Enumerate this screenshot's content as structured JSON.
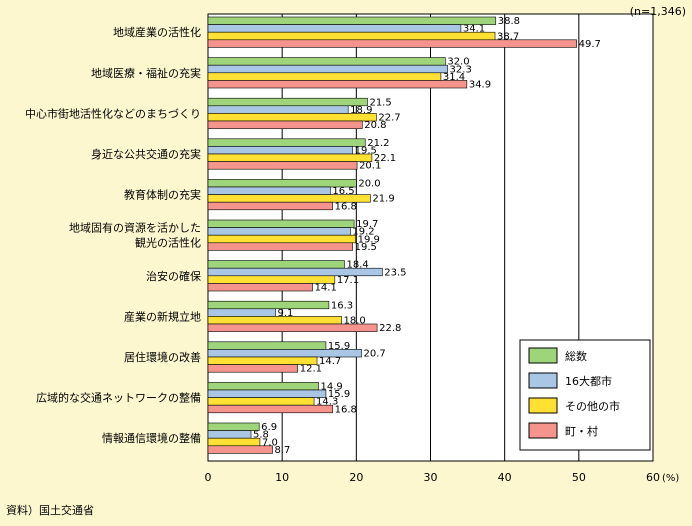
{
  "chart_data": {
    "type": "bar",
    "orientation": "horizontal",
    "sample_note": "(n=1,346)",
    "source": "資料）国土交通省",
    "x_unit": "(%)",
    "xlim": [
      0,
      60
    ],
    "x_ticks": [
      "0",
      "10",
      "20",
      "30",
      "40",
      "50",
      "60"
    ],
    "grid": "vertical",
    "legend_position": "bottom-right",
    "categories": [
      [
        "地域産業の活性化"
      ],
      [
        "地域医療・福祉の充実"
      ],
      [
        "中心市街地活性化などのまちづくり"
      ],
      [
        "身近な公共交通の充実"
      ],
      [
        "教育体制の充実"
      ],
      [
        "地域固有の資源を活かした",
        "観光の活性化"
      ],
      [
        "治安の確保"
      ],
      [
        "産業の新規立地"
      ],
      [
        "居住環境の改善"
      ],
      [
        "広域的な交通ネットワークの整備"
      ],
      [
        "情報通信環境の整備"
      ]
    ],
    "series": [
      {
        "name": "総数",
        "color": "#9ed47a",
        "values": [
          38.8,
          32.0,
          21.5,
          21.2,
          20.0,
          19.7,
          18.4,
          16.3,
          15.9,
          14.9,
          6.9
        ]
      },
      {
        "name": "16大都市",
        "color": "#a9c6e4",
        "values": [
          34.1,
          32.3,
          18.9,
          19.5,
          16.5,
          19.2,
          23.5,
          9.1,
          20.7,
          15.9,
          5.8
        ]
      },
      {
        "name": "その他の市",
        "color": "#ffe033",
        "values": [
          38.7,
          31.4,
          22.7,
          22.1,
          21.9,
          19.9,
          17.1,
          18.0,
          14.7,
          14.3,
          7.0
        ]
      },
      {
        "name": "町・村",
        "color": "#f5948c",
        "values": [
          49.7,
          34.9,
          20.8,
          20.1,
          16.8,
          19.5,
          14.1,
          22.8,
          12.1,
          16.8,
          8.7
        ]
      }
    ]
  }
}
